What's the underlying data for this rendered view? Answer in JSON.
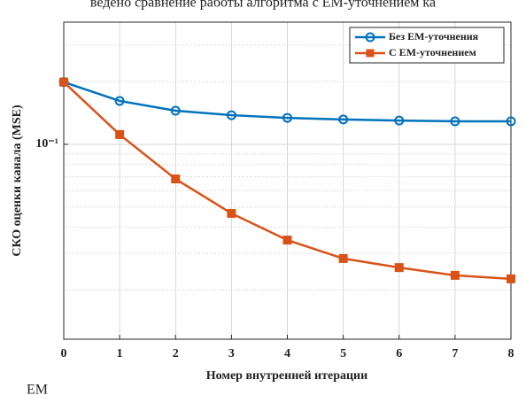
{
  "page_text": "ведено сравнение работы алгоритма с ЕМ-уточнением ка",
  "footer_text": "ЕМ",
  "chart_data": {
    "type": "line",
    "x_label": "Номер внутренней итерации",
    "y_label": "СКО оценки канала (MSE)",
    "x": [
      0,
      1,
      2,
      3,
      4,
      5,
      6,
      7,
      8
    ],
    "series": [
      {
        "name": "Без ЕМ-уточнения",
        "color": "#0072bd",
        "marker": "circle",
        "values": [
          0.199,
          0.1616,
          0.145,
          0.138,
          0.134,
          0.1316,
          0.13,
          0.129,
          0.129
        ]
      },
      {
        "name": "С ЕМ-уточнением",
        "color": "#d95319",
        "marker": "square",
        "values": [
          0.199,
          0.1114,
          0.0682,
          0.0466,
          0.0347,
          0.0283,
          0.0256,
          0.0235,
          0.0226
        ]
      }
    ],
    "xlim": [
      0,
      8
    ],
    "xticks": [
      0,
      1,
      2,
      3,
      4,
      5,
      6,
      7,
      8
    ],
    "ylim": [
      0.0116,
      0.386
    ],
    "yticks": [
      {
        "value": 0.1,
        "label": "10⁻¹"
      }
    ],
    "y_scale": "log",
    "grid": true,
    "minor_grid": true,
    "legend": "upper right"
  }
}
